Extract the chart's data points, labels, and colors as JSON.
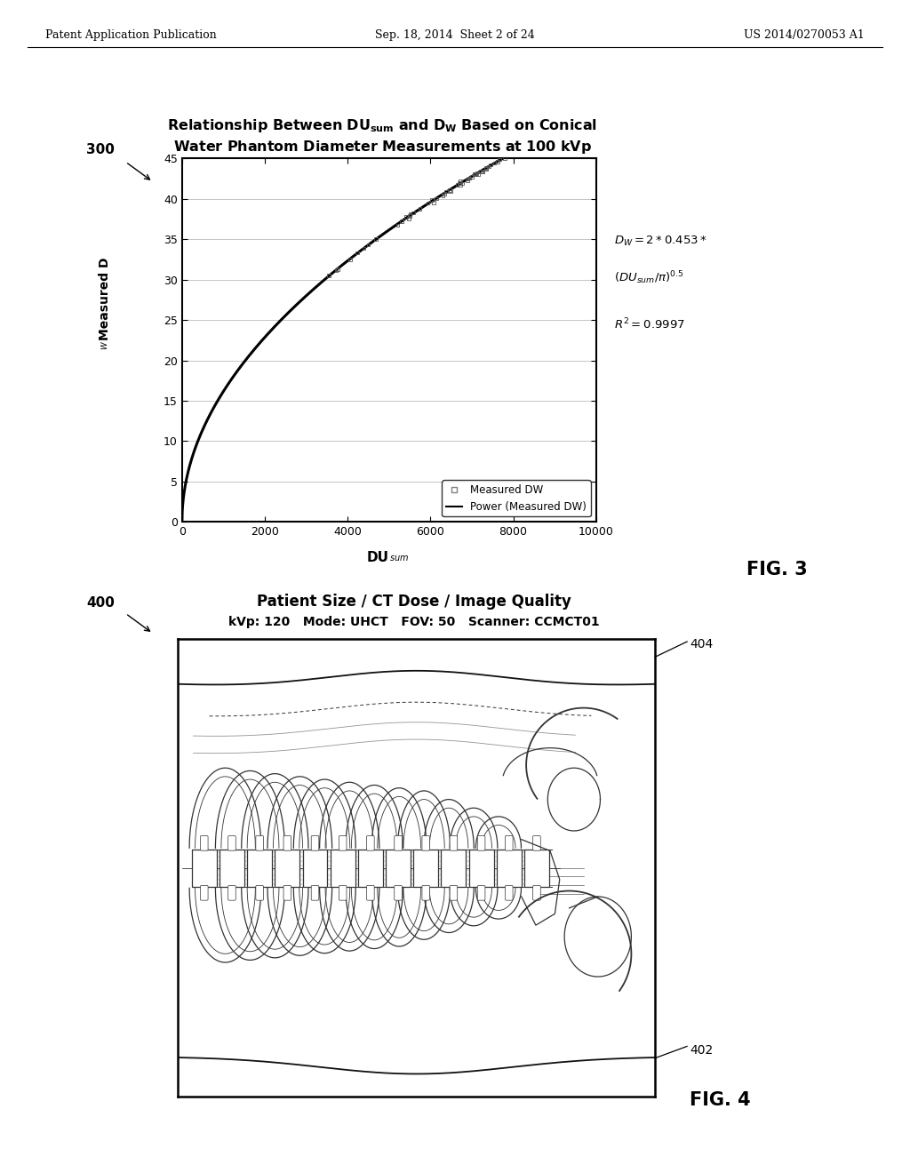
{
  "page_header_left": "Patent Application Publication",
  "page_header_center": "Sep. 18, 2014  Sheet 2 of 24",
  "page_header_right": "US 2014/0270053 A1",
  "fig3_label": "300",
  "fig3_xlabel_text": "DU",
  "fig3_xlabel_sub": "sum",
  "fig3_ylabel_text": "Measured D",
  "fig3_ylabel_sub": "W",
  "fig3_xlim": [
    0,
    10000
  ],
  "fig3_ylim": [
    0,
    45
  ],
  "fig3_xticks": [
    0,
    2000,
    4000,
    6000,
    8000,
    10000
  ],
  "fig3_yticks": [
    0,
    5,
    10,
    15,
    20,
    25,
    30,
    35,
    40,
    45
  ],
  "fig3_legend_scatter": "Measured DW",
  "fig3_legend_line": "Power (Measured DW)",
  "fig3_fig_label": "FIG. 3",
  "fig4_label": "400",
  "fig4_title_line1": "Patient Size / CT Dose / Image Quality",
  "fig4_title_line2": "kVp: 120   Mode: UHCT   FOV: 50   Scanner: CCMCT01",
  "fig4_label_404": "404",
  "fig4_label_402": "402",
  "fig4_fig_label": "FIG. 4",
  "background_color": "#ffffff",
  "text_color": "#000000",
  "curve_color": "#000000",
  "scatter_color": "#555555",
  "grid_color": "#bbbbbb"
}
